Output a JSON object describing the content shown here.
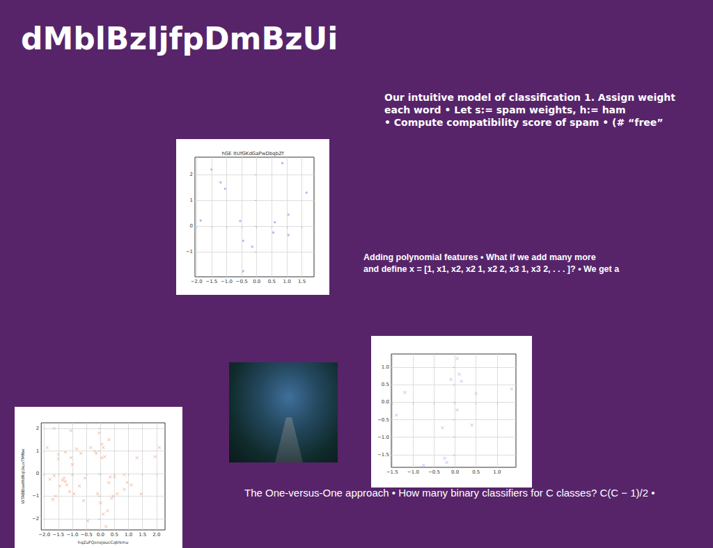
{
  "title": "dMblBzIjfpDmBzUi",
  "text_blocks": [
    {
      "lines": [
        "Our intuitive model of classification 1. Assign weight",
        "each word • Let s:= spam weights, h:= ham",
        "• Compute compatibility score of spam • (# “free”"
      ]
    },
    {
      "lines": [
        "Adding polynomial features • What if we add many more",
        "and define x = [1, x1, x2, x2 1, x2 2, x3 1, x3 2, . . . ]? • We get a"
      ]
    },
    {
      "lines": [
        "The One-versus-One approach • How many binary classifiers for C classes? C(C − 1)/2 •"
      ]
    }
  ],
  "chart_data": [
    {
      "type": "scatter",
      "title": "hGE ItUfGKdGaPwDbqbZf",
      "color": "#a9acec",
      "marker": "o",
      "grid": true,
      "x": [
        -1.86,
        -1.5,
        -1.2,
        -1.05,
        -0.55,
        -0.45,
        -0.45,
        -0.15,
        0.55,
        0.6,
        0.85,
        1.05,
        1.05,
        1.65
      ],
      "values": [
        0.22,
        2.2,
        1.7,
        1.45,
        0.2,
        -0.57,
        -1.75,
        -0.8,
        -0.25,
        0.15,
        2.45,
        0.45,
        -0.35,
        1.3
      ],
      "xlim": [
        -2.05,
        1.9
      ],
      "ylim": [
        -1.97,
        2.68
      ],
      "xticks": [
        {
          "value": -2,
          "label": "−2.0"
        },
        {
          "value": -1.5,
          "label": "−1.5"
        },
        {
          "value": -1,
          "label": "−1.0"
        },
        {
          "value": -0.5,
          "label": "−0.5"
        },
        {
          "value": 0,
          "label": "0.0"
        },
        0.5,
        {
          "value": 1,
          "label": "1.0"
        },
        1.5
      ],
      "yticks": [
        {
          "value": -1,
          "label": "−1"
        },
        0,
        1,
        2
      ]
    },
    {
      "type": "scatter",
      "color": "#a9acec",
      "marker": "x",
      "grid": true,
      "x": [
        -1.4,
        -1.2,
        -0.75,
        -0.3,
        -0.25,
        -0.2,
        -0.1,
        0.05,
        0.05,
        0.1,
        0.15,
        0.4,
        0.5,
        1.35
      ],
      "values": [
        -0.37,
        0.28,
        -1.8,
        -0.73,
        -1.6,
        -1.72,
        0.65,
        1.25,
        -0.22,
        0.8,
        0.6,
        -0.65,
        0.25,
        0.38
      ],
      "xlim": [
        -1.52,
        1.45
      ],
      "ylim": [
        -1.86,
        1.38
      ],
      "xticks": [
        {
          "value": -1.5,
          "label": "−1.5"
        },
        {
          "value": -1,
          "label": "−1.0"
        },
        {
          "value": -0.5,
          "label": "−0.5"
        },
        {
          "value": 0,
          "label": "0.0"
        },
        0.5,
        {
          "value": 1,
          "label": "1.0"
        }
      ],
      "yticks": [
        {
          "value": -1.5,
          "label": "−1.5"
        },
        {
          "value": -1,
          "label": "−1.0"
        },
        {
          "value": -0.5,
          "label": "−0.5"
        },
        {
          "value": 0,
          "label": "0.0"
        },
        0.5,
        {
          "value": 1,
          "label": "1.0"
        }
      ]
    },
    {
      "type": "scatter",
      "color": "#f0a47c",
      "marker": "x",
      "grid": true,
      "xlabel": "hqZuFQsnxjoucCqtrkmu",
      "ylabel": "WTABBswHdRqUkuvTMNw",
      "x": [
        -1.9,
        -1.8,
        -1.7,
        -1.65,
        -1.65,
        -1.6,
        -1.5,
        -1.5,
        -1.45,
        -1.35,
        -1.3,
        -1.25,
        -1.25,
        -1.2,
        -1.1,
        -1.05,
        -1.05,
        -1.0,
        -1.0,
        -0.95,
        -0.85,
        -0.75,
        -0.7,
        -0.6,
        -0.55,
        -0.45,
        -0.35,
        -0.2,
        -0.15,
        -0.1,
        -0.05,
        0.0,
        0.05,
        0.05,
        0.1,
        0.1,
        0.15,
        0.2,
        0.25,
        0.3,
        0.3,
        0.35,
        0.4,
        0.45,
        0.5,
        0.6,
        0.85,
        0.85,
        0.95,
        1.1,
        1.3,
        1.45,
        1.95,
        2.1
      ],
      "values": [
        1.15,
        -0.25,
        -1.15,
        2.0,
        -0.1,
        -1.0,
        0.85,
        0.65,
        -0.55,
        -0.3,
        -0.2,
        -0.35,
        0.95,
        -0.5,
        -0.8,
        1.9,
        0.7,
        0.4,
        -0.05,
        -0.9,
        1.1,
        -0.55,
        0.9,
        -1.2,
        -0.2,
        -2.1,
        1.15,
        1.0,
        0.9,
        -0.9,
        1.8,
        -1.3,
        1.3,
        0.7,
        1.15,
        -1.8,
        0.75,
        -2.35,
        -1.65,
        1.5,
        -0.4,
        -0.15,
        -1.1,
        -1.0,
        -0.15,
        -0.9,
        -0.05,
        -0.7,
        -0.4,
        -0.5,
        0.7,
        -0.9,
        0.75,
        1.15
      ],
      "xlim": [
        -2.11,
        2.3
      ],
      "ylim": [
        -2.5,
        2.25
      ],
      "xticks": [
        {
          "value": -2,
          "label": "−2.0"
        },
        {
          "value": -1.5,
          "label": "−1.5"
        },
        {
          "value": -1,
          "label": "−1.0"
        },
        {
          "value": -0.5,
          "label": "−0.5"
        },
        {
          "value": 0,
          "label": "0.0"
        },
        0.5,
        {
          "value": 1,
          "label": "1.0"
        },
        1.5,
        {
          "value": 2,
          "label": "2.0"
        }
      ],
      "yticks": [
        {
          "value": -2,
          "label": "−2"
        },
        {
          "value": -1,
          "label": "−1"
        },
        0,
        1,
        2
      ]
    }
  ]
}
